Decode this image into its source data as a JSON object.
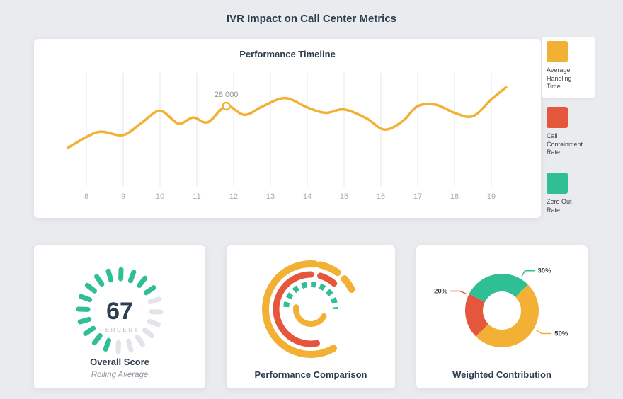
{
  "page": {
    "title": "IVR Impact on Call Center Metrics"
  },
  "colors": {
    "yellow": "#f2b134",
    "red": "#e4573d",
    "teal": "#2fbf95",
    "grid": "#e4e6e9",
    "track": "#e2e4e7",
    "axis_text": "#a9adb3",
    "dark": "#2d3e50",
    "muted": "#8d949c"
  },
  "chart_data": [
    {
      "id": "performance-timeline",
      "type": "line",
      "title": "Performance Timeline",
      "x_ticks": [
        8,
        9,
        10,
        11,
        12,
        13,
        14,
        15,
        16,
        17,
        18,
        19
      ],
      "ylim": [
        20,
        32
      ],
      "grid": "vertical",
      "legend_position": "right",
      "legend": [
        {
          "label": "Average Handling Time",
          "color": "yellow"
        },
        {
          "label": "Call Containment Rate",
          "color": "red"
        },
        {
          "label": "Zero Out Rate",
          "color": "teal"
        }
      ],
      "series": [
        {
          "name": "Average Handling Time",
          "color": "yellow",
          "x": [
            7.5,
            8.0,
            8.4,
            9.0,
            9.5,
            10.0,
            10.5,
            10.9,
            11.3,
            11.8,
            12.3,
            12.8,
            13.4,
            14.0,
            14.5,
            15.0,
            15.6,
            16.1,
            16.6,
            17.0,
            17.5,
            18.0,
            18.5,
            19.0,
            19.4
          ],
          "values": [
            21.8,
            23.4,
            24.2,
            23.7,
            25.5,
            27.3,
            25.4,
            26.3,
            25.6,
            28.0,
            26.7,
            28.0,
            29.2,
            27.8,
            27.0,
            27.5,
            26.2,
            24.5,
            25.8,
            28.0,
            28.2,
            27.0,
            26.5,
            29.0,
            30.8
          ]
        }
      ],
      "annotation": {
        "x": 11.8,
        "y": 28,
        "label": "28.000"
      }
    },
    {
      "id": "overall-score",
      "type": "pie",
      "variant": "gauge",
      "title": "Overall Score",
      "subtitle": "Rolling Average",
      "value": 67,
      "max": 100,
      "unit": "PERCENT",
      "segments": 20
    },
    {
      "id": "performance-comparison",
      "type": "bar",
      "variant": "radial-arcs",
      "title": "Performance Comparison",
      "arcs": [
        {
          "color": "yellow",
          "radius": 64,
          "start": 150,
          "sweep": 215,
          "width": 10
        },
        {
          "color": "yellow",
          "radius": 64,
          "start": 12,
          "sweep": 24,
          "width": 10
        },
        {
          "color": "yellow",
          "radius": 64,
          "start": 48,
          "sweep": 16,
          "width": 10
        },
        {
          "color": "red",
          "radius": 49,
          "start": 170,
          "sweep": 190,
          "width": 9
        },
        {
          "color": "red",
          "radius": 49,
          "start": 16,
          "sweep": 26,
          "width": 9
        },
        {
          "color": "teal",
          "radius": 35,
          "start": 275,
          "sweep": 175,
          "width": 8,
          "dash": "7 6"
        },
        {
          "color": "yellow",
          "radius": 21,
          "start": 118,
          "sweep": 160,
          "width": 8
        }
      ]
    },
    {
      "id": "weighted-contribution",
      "type": "pie",
      "variant": "donut",
      "title": "Weighted Contribution",
      "start_angle": 225,
      "slices": [
        {
          "label": "20%",
          "value": 20,
          "color": "red",
          "label_angle": 295
        },
        {
          "label": "30%",
          "value": 30,
          "color": "teal",
          "label_angle": 30
        },
        {
          "label": "50%",
          "value": 50,
          "color": "yellow",
          "label_angle": 120
        }
      ]
    }
  ]
}
